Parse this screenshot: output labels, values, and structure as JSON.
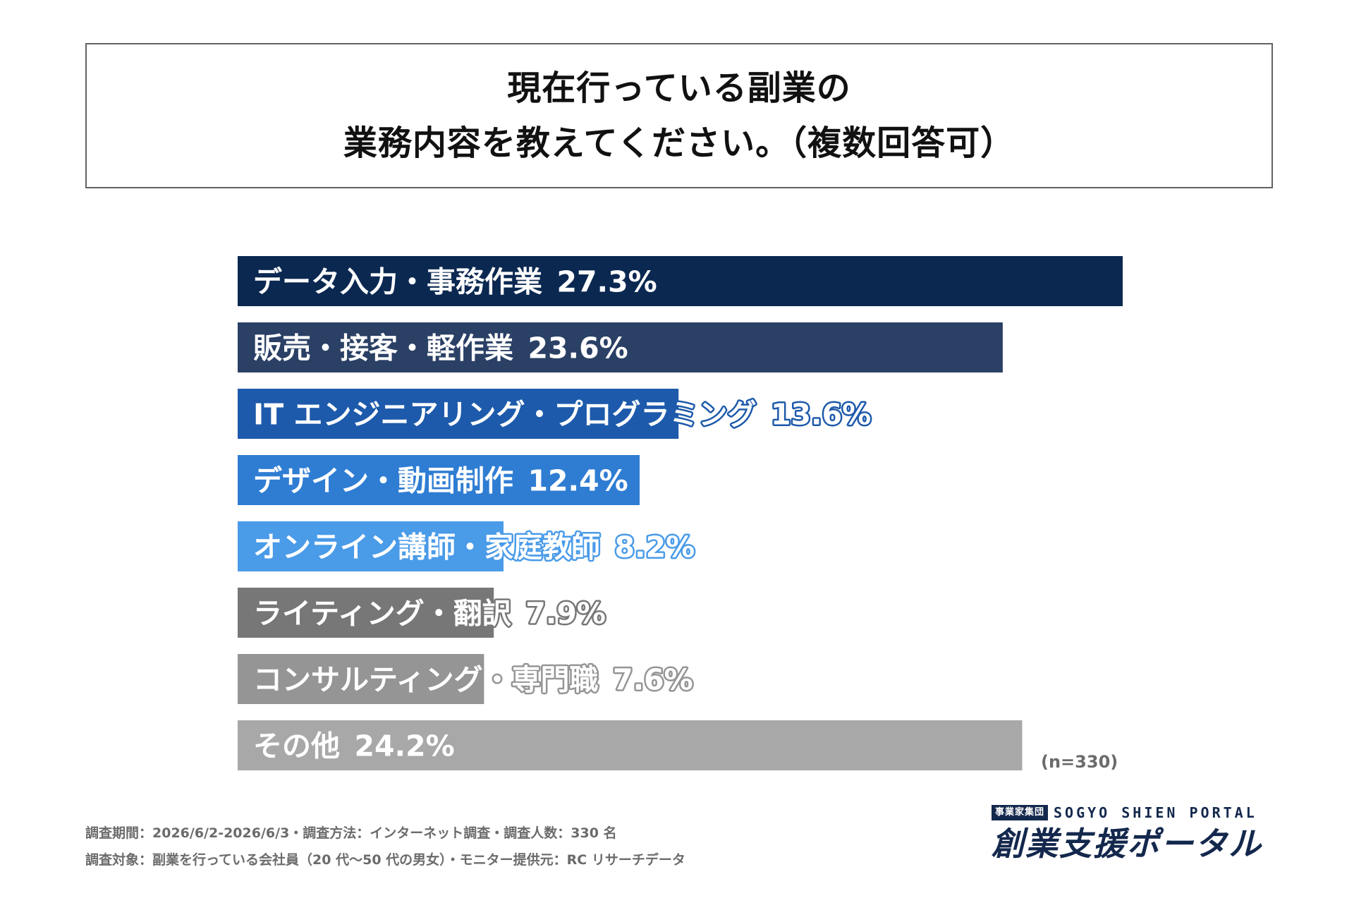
{
  "title": {
    "line1": "現在行っている副業の",
    "line2": "業務内容を教えてください。（複数回答可）"
  },
  "chart_data": {
    "type": "bar",
    "orientation": "horizontal",
    "categories": [
      "データ入力・事務作業",
      "販売・接客・軽作業",
      "IT エンジニアリング・プログラミング",
      "デザイン・動画制作",
      "オンライン講師・家庭教師",
      "ライティング・翻訳",
      "コンサルティング・専門職",
      "その他"
    ],
    "values": [
      27.3,
      23.6,
      13.6,
      12.4,
      8.2,
      7.9,
      7.6,
      24.2
    ],
    "value_labels": [
      "27.3%",
      "23.6%",
      "13.6%",
      "12.4%",
      "8.2%",
      "7.9%",
      "7.6%",
      "24.2%"
    ],
    "colors": [
      "#0b2851",
      "#2a4065",
      "#1d5aab",
      "#2f7dd3",
      "#4a9be8",
      "#777777",
      "#959595",
      "#a8a8a8"
    ],
    "xlim": [
      0,
      27.3
    ],
    "grid": false,
    "legend": "none"
  },
  "sample_note": "(n=330)",
  "footer": {
    "line1": "調査期間：2026/6/2-2026/6/3・調査方法：インターネット調査・調査人数：330 名",
    "line2": "調査対象：副業を行っている会社員（20 代〜50 代の男女）・モニター提供元：RC リサーチデータ"
  },
  "logo": {
    "badge": "事業家集団",
    "english": "SOGYO SHIEN PORTAL",
    "japanese": "創業支援ポータル"
  }
}
